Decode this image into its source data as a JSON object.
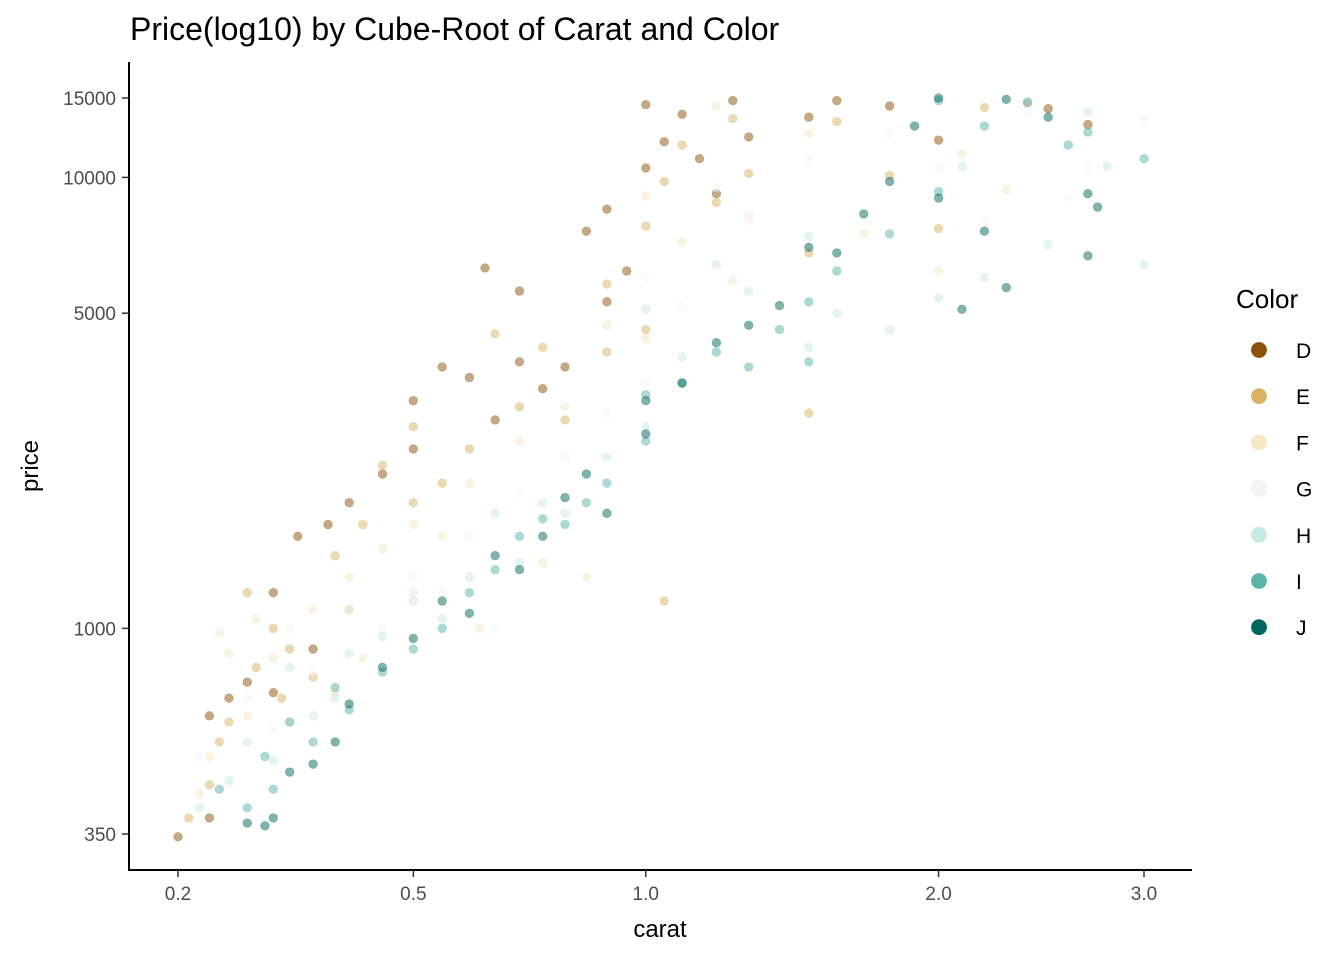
{
  "chart_data": {
    "type": "scatter",
    "title": "Price(log10) by Cube-Root of Carat and Color",
    "xlabel": "carat",
    "ylabel": "price",
    "x_scale": "cube-root",
    "y_scale": "log10",
    "xlim": [
      0.18,
      3.1
    ],
    "ylim": [
      280,
      17000
    ],
    "x_ticks": [
      {
        "value": 0.2,
        "label": "0.2"
      },
      {
        "value": 0.5,
        "label": "0.5"
      },
      {
        "value": 1.0,
        "label": "1.0"
      },
      {
        "value": 2.0,
        "label": "2.0"
      },
      {
        "value": 3.0,
        "label": "3.0"
      }
    ],
    "y_ticks": [
      {
        "value": 350,
        "label": "350"
      },
      {
        "value": 1000,
        "label": "1000"
      },
      {
        "value": 5000,
        "label": "5000"
      },
      {
        "value": 10000,
        "label": "10000"
      },
      {
        "value": 15000,
        "label": "15000"
      }
    ],
    "grid": false,
    "legend": {
      "title": "Color",
      "position": "right"
    },
    "point_alpha": 0.5,
    "series": [
      {
        "name": "D",
        "color": "#8c510a",
        "points": [
          [
            0.2,
            345
          ],
          [
            0.23,
            380
          ],
          [
            0.23,
            640
          ],
          [
            0.25,
            700
          ],
          [
            0.27,
            760
          ],
          [
            0.3,
            1200
          ],
          [
            0.3,
            720
          ],
          [
            0.33,
            1600
          ],
          [
            0.35,
            900
          ],
          [
            0.37,
            1700
          ],
          [
            0.4,
            1900
          ],
          [
            0.45,
            2200
          ],
          [
            0.5,
            2500
          ],
          [
            0.5,
            3200
          ],
          [
            0.55,
            3800
          ],
          [
            0.6,
            3600
          ],
          [
            0.63,
            6300
          ],
          [
            0.65,
            2900
          ],
          [
            0.7,
            3900
          ],
          [
            0.7,
            5600
          ],
          [
            0.75,
            3400
          ],
          [
            0.8,
            3800
          ],
          [
            0.85,
            7600
          ],
          [
            0.9,
            8500
          ],
          [
            0.9,
            5300
          ],
          [
            0.95,
            6200
          ],
          [
            1.0,
            10500
          ],
          [
            1.0,
            14500
          ],
          [
            1.05,
            12000
          ],
          [
            1.1,
            13800
          ],
          [
            1.15,
            11000
          ],
          [
            1.2,
            9200
          ],
          [
            1.25,
            14800
          ],
          [
            1.3,
            12300
          ],
          [
            1.5,
            13600
          ],
          [
            1.6,
            14800
          ],
          [
            1.8,
            14400
          ],
          [
            2.0,
            12100
          ],
          [
            2.5,
            14200
          ],
          [
            2.7,
            13100
          ]
        ]
      },
      {
        "name": "E",
        "color": "#d8b365",
        "points": [
          [
            0.21,
            380
          ],
          [
            0.23,
            450
          ],
          [
            0.24,
            560
          ],
          [
            0.25,
            620
          ],
          [
            0.27,
            1200
          ],
          [
            0.28,
            820
          ],
          [
            0.3,
            1000
          ],
          [
            0.31,
            700
          ],
          [
            0.32,
            900
          ],
          [
            0.35,
            780
          ],
          [
            0.38,
            1450
          ],
          [
            0.4,
            1100
          ],
          [
            0.42,
            1700
          ],
          [
            0.45,
            2300
          ],
          [
            0.5,
            1900
          ],
          [
            0.5,
            2800
          ],
          [
            0.55,
            2100
          ],
          [
            0.6,
            2500
          ],
          [
            0.65,
            4500
          ],
          [
            0.7,
            3100
          ],
          [
            0.75,
            4200
          ],
          [
            0.8,
            2900
          ],
          [
            0.9,
            4100
          ],
          [
            0.9,
            5800
          ],
          [
            1.0,
            4600
          ],
          [
            1.0,
            7800
          ],
          [
            1.05,
            9800
          ],
          [
            1.1,
            11800
          ],
          [
            1.2,
            8800
          ],
          [
            1.25,
            13500
          ],
          [
            1.3,
            10200
          ],
          [
            1.5,
            6800
          ],
          [
            1.5,
            3000
          ],
          [
            1.6,
            13300
          ],
          [
            1.8,
            10100
          ],
          [
            2.0,
            7700
          ],
          [
            2.2,
            14300
          ],
          [
            2.4,
            14600
          ],
          [
            1.05,
            1150
          ]
        ]
      },
      {
        "name": "F",
        "color": "#f6e8c3",
        "points": [
          [
            0.22,
            430
          ],
          [
            0.23,
            520
          ],
          [
            0.24,
            980
          ],
          [
            0.25,
            880
          ],
          [
            0.27,
            640
          ],
          [
            0.28,
            1050
          ],
          [
            0.3,
            860
          ],
          [
            0.32,
            620
          ],
          [
            0.35,
            1100
          ],
          [
            0.38,
            720
          ],
          [
            0.4,
            1300
          ],
          [
            0.42,
            860
          ],
          [
            0.45,
            1500
          ],
          [
            0.5,
            1700
          ],
          [
            0.5,
            1200
          ],
          [
            0.55,
            1600
          ],
          [
            0.6,
            2100
          ],
          [
            0.62,
            1000
          ],
          [
            0.7,
            2600
          ],
          [
            0.75,
            1400
          ],
          [
            0.8,
            3100
          ],
          [
            0.85,
            1300
          ],
          [
            0.9,
            4700
          ],
          [
            1.0,
            4400
          ],
          [
            1.0,
            9100
          ],
          [
            1.1,
            7200
          ],
          [
            1.2,
            14400
          ],
          [
            1.25,
            5900
          ],
          [
            1.3,
            8200
          ],
          [
            1.5,
            12500
          ],
          [
            1.7,
            7500
          ],
          [
            2.0,
            6200
          ],
          [
            2.1,
            11300
          ],
          [
            2.3,
            9400
          ]
        ]
      },
      {
        "name": "G",
        "color": "#f5f5f5",
        "points": [
          [
            0.22,
            520
          ],
          [
            0.25,
            450
          ],
          [
            0.27,
            700
          ],
          [
            0.3,
            600
          ],
          [
            0.32,
            1000
          ],
          [
            0.35,
            800
          ],
          [
            0.4,
            1100
          ],
          [
            0.45,
            1000
          ],
          [
            0.5,
            1300
          ],
          [
            0.55,
            1200
          ],
          [
            0.6,
            1600
          ],
          [
            0.65,
            1000
          ],
          [
            0.7,
            2000
          ],
          [
            0.8,
            2400
          ],
          [
            0.9,
            3000
          ],
          [
            1.0,
            3500
          ],
          [
            1.0,
            6000
          ],
          [
            1.1,
            5200
          ],
          [
            1.2,
            9500
          ],
          [
            1.3,
            8000
          ],
          [
            1.5,
            11000
          ],
          [
            1.6,
            6500
          ],
          [
            1.8,
            12500
          ],
          [
            2.0,
            10500
          ],
          [
            2.2,
            8000
          ],
          [
            2.4,
            14000
          ],
          [
            2.6,
            9000
          ],
          [
            3.0,
            13500
          ],
          [
            2.7,
            10500
          ]
        ]
      },
      {
        "name": "H",
        "color": "#c7eae5",
        "points": [
          [
            0.22,
            400
          ],
          [
            0.25,
            460
          ],
          [
            0.27,
            560
          ],
          [
            0.3,
            510
          ],
          [
            0.32,
            820
          ],
          [
            0.35,
            640
          ],
          [
            0.38,
            700
          ],
          [
            0.4,
            880
          ],
          [
            0.45,
            960
          ],
          [
            0.5,
            1150
          ],
          [
            0.55,
            1050
          ],
          [
            0.6,
            1300
          ],
          [
            0.65,
            1800
          ],
          [
            0.7,
            1400
          ],
          [
            0.75,
            1900
          ],
          [
            0.8,
            1800
          ],
          [
            0.9,
            2400
          ],
          [
            1.0,
            2800
          ],
          [
            1.0,
            5100
          ],
          [
            1.1,
            4000
          ],
          [
            1.2,
            6400
          ],
          [
            1.3,
            5600
          ],
          [
            1.5,
            7400
          ],
          [
            1.5,
            4200
          ],
          [
            1.6,
            5000
          ],
          [
            1.8,
            4600
          ],
          [
            2.0,
            5400
          ],
          [
            2.1,
            10600
          ],
          [
            2.2,
            6000
          ],
          [
            2.5,
            7100
          ],
          [
            2.7,
            14000
          ],
          [
            3.0,
            6400
          ],
          [
            2.8,
            10600
          ]
        ]
      },
      {
        "name": "I",
        "color": "#5ab4ac",
        "points": [
          [
            0.24,
            440
          ],
          [
            0.27,
            400
          ],
          [
            0.29,
            520
          ],
          [
            0.3,
            440
          ],
          [
            0.32,
            620
          ],
          [
            0.35,
            560
          ],
          [
            0.38,
            740
          ],
          [
            0.4,
            660
          ],
          [
            0.45,
            800
          ],
          [
            0.5,
            900
          ],
          [
            0.55,
            1000
          ],
          [
            0.6,
            1200
          ],
          [
            0.65,
            1350
          ],
          [
            0.7,
            1600
          ],
          [
            0.75,
            1750
          ],
          [
            0.8,
            1700
          ],
          [
            0.85,
            1900
          ],
          [
            0.9,
            2100
          ],
          [
            1.0,
            2600
          ],
          [
            1.0,
            3300
          ],
          [
            1.1,
            3500
          ],
          [
            1.2,
            4100
          ],
          [
            1.3,
            3800
          ],
          [
            1.4,
            4600
          ],
          [
            1.5,
            5300
          ],
          [
            1.5,
            3900
          ],
          [
            1.6,
            6200
          ],
          [
            1.8,
            7500
          ],
          [
            2.0,
            9300
          ],
          [
            2.0,
            14800
          ],
          [
            2.2,
            13000
          ],
          [
            2.4,
            14700
          ],
          [
            2.6,
            11800
          ],
          [
            3.0,
            11000
          ],
          [
            2.7,
            12600
          ]
        ]
      },
      {
        "name": "J",
        "color": "#01665e",
        "points": [
          [
            0.27,
            370
          ],
          [
            0.29,
            365
          ],
          [
            0.3,
            380
          ],
          [
            0.32,
            480
          ],
          [
            0.35,
            500
          ],
          [
            0.38,
            560
          ],
          [
            0.4,
            680
          ],
          [
            0.45,
            820
          ],
          [
            0.5,
            950
          ],
          [
            0.55,
            1150
          ],
          [
            0.6,
            1080
          ],
          [
            0.65,
            1450
          ],
          [
            0.7,
            1350
          ],
          [
            0.75,
            1600
          ],
          [
            0.8,
            1950
          ],
          [
            0.85,
            2200
          ],
          [
            0.9,
            1800
          ],
          [
            1.0,
            2700
          ],
          [
            1.0,
            3200
          ],
          [
            1.1,
            3500
          ],
          [
            1.2,
            4300
          ],
          [
            1.3,
            4700
          ],
          [
            1.4,
            5200
          ],
          [
            1.5,
            7000
          ],
          [
            1.6,
            6800
          ],
          [
            1.7,
            8300
          ],
          [
            1.8,
            9800
          ],
          [
            1.9,
            13000
          ],
          [
            2.0,
            15000
          ],
          [
            2.0,
            9000
          ],
          [
            2.1,
            5100
          ],
          [
            2.2,
            7600
          ],
          [
            2.3,
            14900
          ],
          [
            2.5,
            13600
          ],
          [
            2.7,
            9200
          ],
          [
            2.75,
            8600
          ],
          [
            2.3,
            5700
          ],
          [
            2.7,
            6700
          ]
        ]
      }
    ]
  }
}
